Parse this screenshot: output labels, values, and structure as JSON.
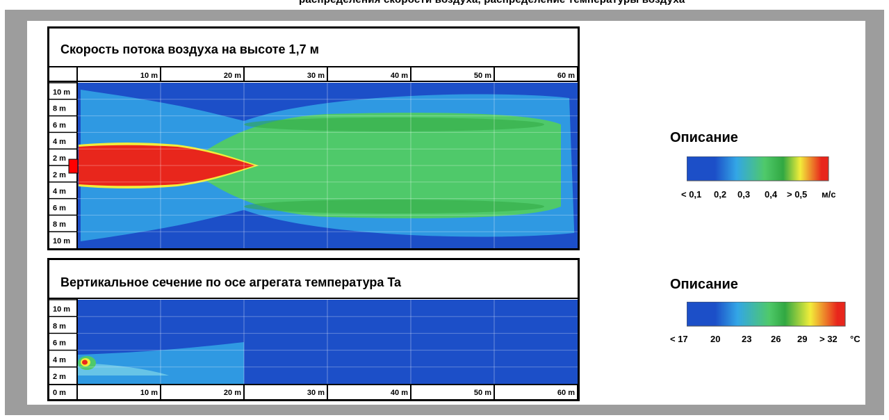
{
  "header": {
    "partial_title": "распределения скорости воздуха, распределение температуры воздуха"
  },
  "chart_data": [
    {
      "type": "heatmap",
      "title": "Скорость потока воздуха на высоте 1,7 м",
      "x_tick_labels": [
        "10 m",
        "20 m",
        "30 m",
        "40 m",
        "50 m",
        "60 m"
      ],
      "y_tick_labels": [
        "10 m",
        "8 m",
        "6 m",
        "4 m",
        "2 m",
        "2 m",
        "4 m",
        "6 m",
        "8 m",
        "10 m"
      ],
      "xlim": [
        0,
        60
      ],
      "ylim": [
        -10,
        10
      ],
      "grid": true,
      "source_marker_color": "#ff0000",
      "legend": {
        "title": "Описание",
        "ticks": [
          "< 0,1",
          "0,2",
          "0,3",
          "0,4",
          "> 0,5"
        ],
        "unit": "м/с",
        "colors": [
          "#1c4fc8",
          "#33a6e6",
          "#4fc96a",
          "#31a842",
          "#f2ed3a",
          "#e8261c"
        ]
      }
    },
    {
      "type": "heatmap",
      "title": "Вертикальное сечение по осе агрегата температура Ta",
      "x_tick_labels": [
        "0 m",
        "10 m",
        "20 m",
        "30 m",
        "40 m",
        "50 m",
        "60 m"
      ],
      "y_tick_labels": [
        "10 m",
        "8 m",
        "6 m",
        "4 m",
        "2 m"
      ],
      "xlim": [
        0,
        60
      ],
      "ylim": [
        0,
        10
      ],
      "grid": true,
      "legend": {
        "title": "Описание",
        "ticks": [
          "< 17",
          "20",
          "23",
          "26",
          "29",
          "> 32"
        ],
        "unit": "°C",
        "colors": [
          "#1c4fc8",
          "#33a6e6",
          "#4fc96a",
          "#31a842",
          "#f2ed3a",
          "#e8261c"
        ]
      }
    }
  ]
}
